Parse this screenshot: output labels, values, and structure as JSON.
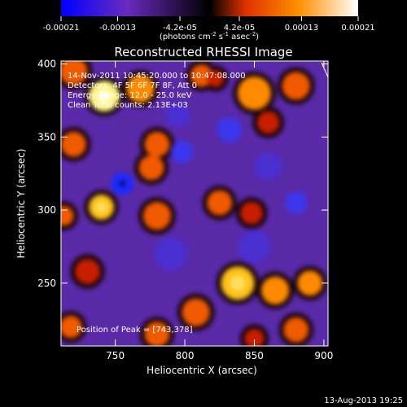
{
  "colorbar": {
    "ticks": [
      "-0.00021",
      "-0.00013",
      "-4.2e-05",
      "4.2e-05",
      "0.00013",
      "0.00021"
    ],
    "tick_values": [
      -0.00021,
      -0.00013,
      -4.2e-05,
      4.2e-05,
      0.00013,
      0.00021
    ],
    "range": [
      -0.00021,
      0.00021
    ],
    "units_main": "(photons cm",
    "units_exp1": "-2",
    "units_mid": " s",
    "units_exp2": "-1",
    "units_mid2": " asec",
    "units_exp3": "-2",
    "units_end": ")",
    "colors": [
      "#0000ff",
      "#6a2ac0",
      "#000000",
      "#e03000",
      "#ff9000",
      "#ffffff"
    ]
  },
  "annotations": {
    "time_range": "14-Nov-2011 10:45:20.000 to 10:47:08.000",
    "detectors": "Detectors: 4F 5F 6F 7F 8F, Att 0",
    "energy": "Energy Range: 12.0 - 25.0 keV",
    "clean": "Clean    Total counts: 2.13E+03",
    "peak": "Position of Peak = [743,378]"
  },
  "footer": {
    "date": "13-Aug-2013 19:25"
  },
  "chart_data": {
    "type": "heatmap",
    "title": "Reconstructed RHESSI Image",
    "xlabel": "Heliocentric X (arcsec)",
    "ylabel": "Heliocentric Y (arcsec)",
    "xlim": [
      711,
      903
    ],
    "ylim": [
      207,
      402
    ],
    "x_ticks": [
      750,
      800,
      850,
      900
    ],
    "x_tick_labels": [
      "750",
      "800",
      "850",
      "900"
    ],
    "y_ticks": [
      250,
      300,
      350,
      400
    ],
    "y_tick_labels": [
      "250",
      "300",
      "350",
      "400"
    ],
    "colorbar_range": [
      -0.00021,
      0.00021
    ],
    "peak": [
      743,
      378
    ],
    "blobs": [
      {
        "x": 720,
        "y": 395,
        "r": 10,
        "v": 0.6
      },
      {
        "x": 742,
        "y": 378,
        "r": 11,
        "v": 1.0
      },
      {
        "x": 768,
        "y": 383,
        "r": 10,
        "v": 0.75
      },
      {
        "x": 812,
        "y": 392,
        "r": 8,
        "v": 0.55
      },
      {
        "x": 850,
        "y": 380,
        "r": 12,
        "v": 0.7
      },
      {
        "x": 880,
        "y": 385,
        "r": 10,
        "v": 0.55
      },
      {
        "x": 860,
        "y": 360,
        "r": 8,
        "v": 0.45
      },
      {
        "x": 720,
        "y": 345,
        "r": 9,
        "v": 0.55
      },
      {
        "x": 780,
        "y": 345,
        "r": 9,
        "v": 0.5
      },
      {
        "x": 776,
        "y": 329,
        "r": 9,
        "v": 0.55
      },
      {
        "x": 740,
        "y": 302,
        "r": 9,
        "v": 0.9
      },
      {
        "x": 780,
        "y": 296,
        "r": 10,
        "v": 0.55
      },
      {
        "x": 825,
        "y": 305,
        "r": 9,
        "v": 0.5
      },
      {
        "x": 848,
        "y": 298,
        "r": 8,
        "v": 0.45
      },
      {
        "x": 713,
        "y": 296,
        "r": 7,
        "v": 0.5
      },
      {
        "x": 730,
        "y": 258,
        "r": 9,
        "v": 0.45
      },
      {
        "x": 718,
        "y": 220,
        "r": 8,
        "v": 0.5
      },
      {
        "x": 780,
        "y": 215,
        "r": 9,
        "v": 0.5
      },
      {
        "x": 808,
        "y": 230,
        "r": 10,
        "v": 0.55
      },
      {
        "x": 838,
        "y": 250,
        "r": 12,
        "v": 0.85
      },
      {
        "x": 865,
        "y": 245,
        "r": 10,
        "v": 0.7
      },
      {
        "x": 890,
        "y": 250,
        "r": 9,
        "v": 0.65
      },
      {
        "x": 880,
        "y": 218,
        "r": 9,
        "v": 0.55
      },
      {
        "x": 850,
        "y": 212,
        "r": 7,
        "v": 0.45
      },
      {
        "x": 822,
        "y": 390,
        "r": 6,
        "v": 0.45
      },
      {
        "x": 755,
        "y": 318,
        "r": 8,
        "v": -0.9
      },
      {
        "x": 798,
        "y": 340,
        "r": 8,
        "v": -0.6
      },
      {
        "x": 832,
        "y": 355,
        "r": 9,
        "v": -0.55
      },
      {
        "x": 880,
        "y": 305,
        "r": 8,
        "v": -0.6
      },
      {
        "x": 790,
        "y": 270,
        "r": 12,
        "v": -0.35
      },
      {
        "x": 850,
        "y": 275,
        "r": 12,
        "v": -0.35
      },
      {
        "x": 860,
        "y": 330,
        "r": 10,
        "v": -0.35
      },
      {
        "x": 795,
        "y": 365,
        "r": 9,
        "v": -0.4
      }
    ]
  }
}
